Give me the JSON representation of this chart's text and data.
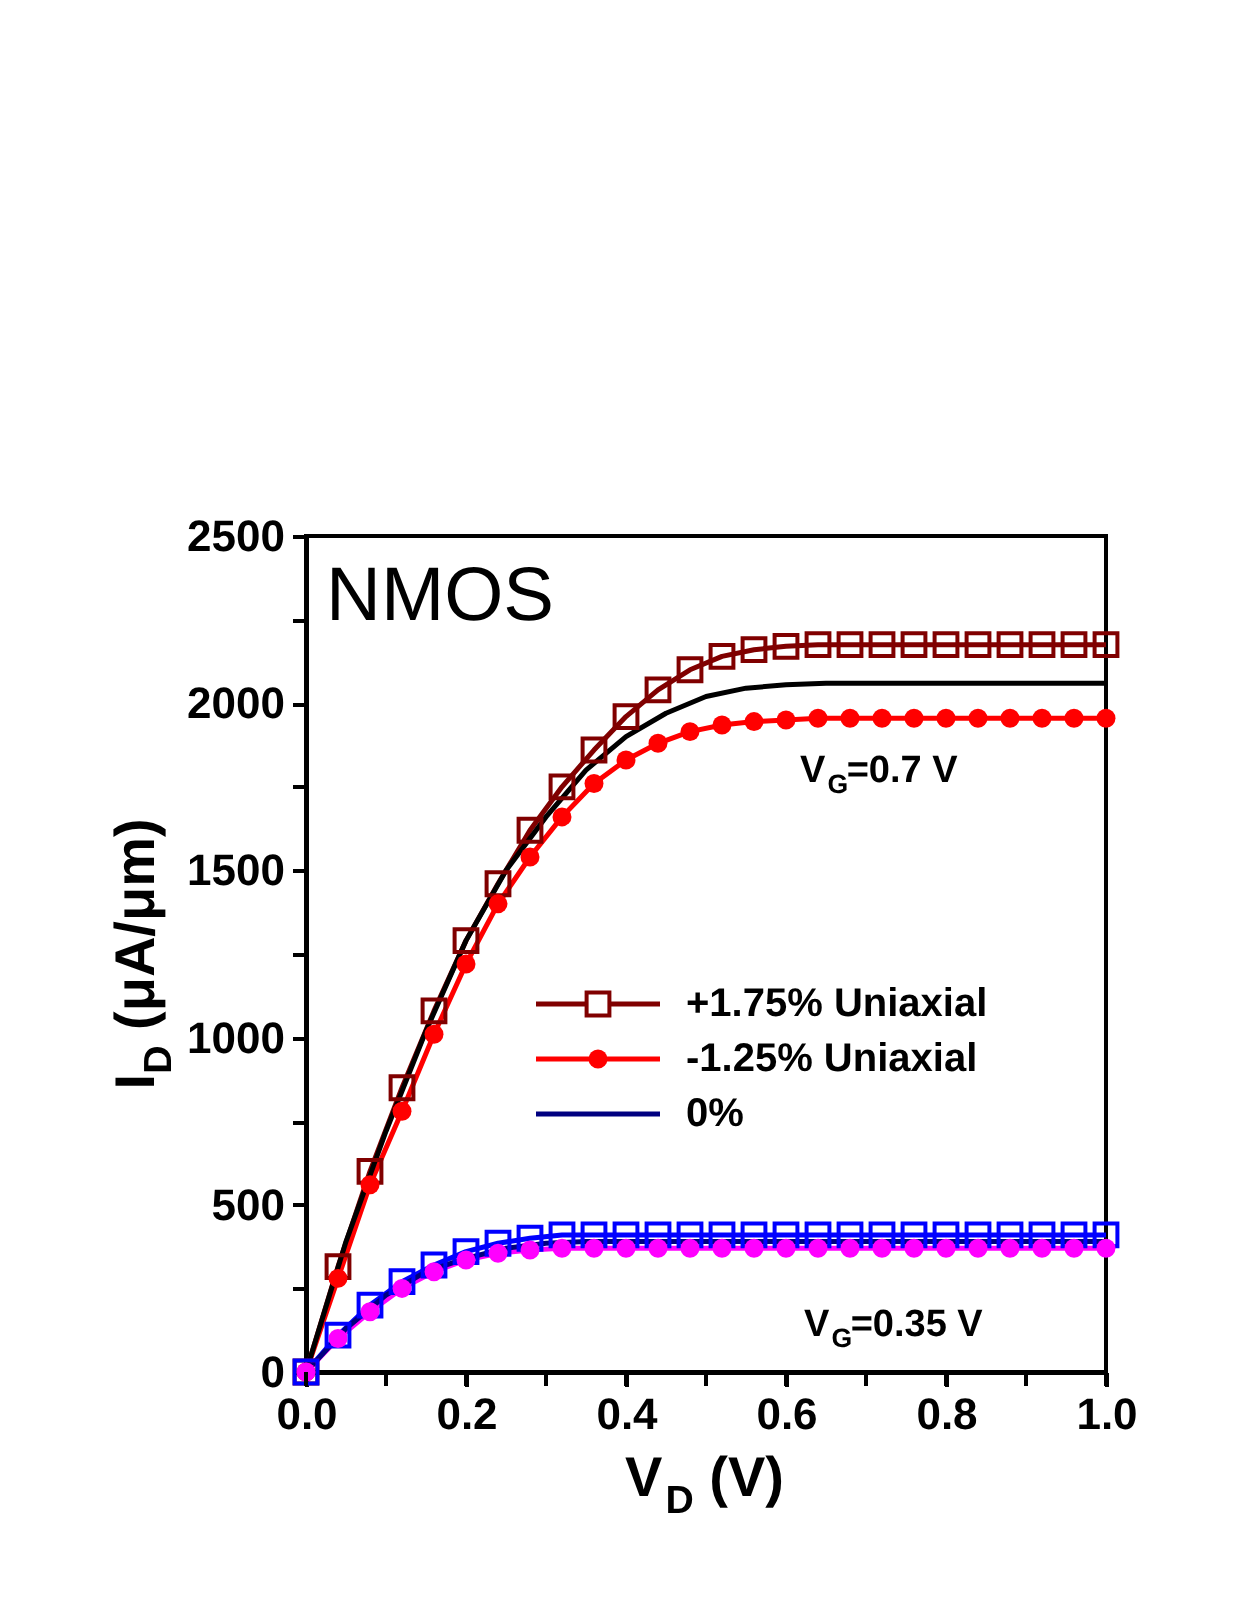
{
  "chart_data": {
    "type": "line",
    "xlabel": "V$_{D}$ (V)",
    "ylabel": "I$_{D}$ (μA/μm)",
    "xlim": [
      0,
      1.0
    ],
    "ylim": [
      0,
      2500
    ],
    "xticks": [
      {
        "value": 0,
        "label": "0.0"
      },
      {
        "value": 0.1,
        "label": null
      },
      {
        "value": 0.2,
        "label": "0.2"
      },
      {
        "value": 0.3,
        "label": null
      },
      {
        "value": 0.4,
        "label": "0.4"
      },
      {
        "value": 0.5,
        "label": null
      },
      {
        "value": 0.6,
        "label": "0.6"
      },
      {
        "value": 0.7,
        "label": null
      },
      {
        "value": 0.8,
        "label": "0.8"
      },
      {
        "value": 0.9,
        "label": null
      },
      {
        "value": 1.0,
        "label": "1.0"
      }
    ],
    "yticks": [
      0,
      {
        "value": 250,
        "label": null
      },
      500,
      {
        "value": 750,
        "label": null
      },
      1000,
      {
        "value": 1250,
        "label": null
      },
      1500,
      {
        "value": 1750,
        "label": null
      },
      2000,
      {
        "value": 2250,
        "label": null
      },
      2500
    ],
    "legend": "right",
    "line_style": "solid",
    "annotations": [
      "NMOS",
      "V$_{G}$=0.7 V",
      "V$_{G}$=0.35 V"
    ],
    "series": [
      {
        "name": "+1.75% Uniaxial",
        "color": "#800000",
        "marker": "square",
        "x": [
          0,
          0.04,
          0.08,
          0.12,
          0.16,
          0.2,
          0.24,
          0.28,
          0.32,
          0.36,
          0.4,
          0.44,
          0.48,
          0.52,
          0.56,
          0.6,
          0.64,
          0.68,
          0.72,
          0.76,
          0.8,
          0.84,
          0.88,
          0.92,
          0.96,
          1.0
        ],
        "values": [
          0,
          315,
          600,
          850,
          1080,
          1290,
          1460,
          1620,
          1750,
          1860,
          1960,
          2040,
          2100,
          2140,
          2160,
          2170,
          2175,
          2175,
          2175,
          2175,
          2175,
          2175,
          2175,
          2175,
          2175,
          2175
        ]
      },
      {
        "name": "-1.25% Uniaxial",
        "color": "#ff0000",
        "marker": "circle",
        "x": [
          0,
          0.04,
          0.08,
          0.12,
          0.16,
          0.2,
          0.24,
          0.28,
          0.32,
          0.36,
          0.4,
          0.44,
          0.48,
          0.52,
          0.56,
          0.6,
          0.64,
          0.68,
          0.72,
          0.76,
          0.8,
          0.84,
          0.88,
          0.92,
          0.96,
          1.0
        ],
        "values": [
          0,
          280,
          560,
          780,
          1010,
          1220,
          1400,
          1540,
          1660,
          1760,
          1830,
          1880,
          1915,
          1935,
          1945,
          1950,
          1955,
          1955,
          1955,
          1955,
          1955,
          1955,
          1955,
          1955,
          1955,
          1955
        ]
      },
      {
        "color": "#000000",
        "marker": "none",
        "x": [
          0,
          0.05,
          0.1,
          0.15,
          0.2,
          0.25,
          0.3,
          0.35,
          0.4,
          0.45,
          0.5,
          0.55,
          0.6,
          0.65,
          0.7,
          1.0
        ],
        "values": [
          0,
          390,
          720,
          1020,
          1290,
          1500,
          1660,
          1800,
          1900,
          1970,
          2020,
          2045,
          2055,
          2060,
          2060,
          2060
        ]
      },
      {
        "color": "#0000ff",
        "marker": "square",
        "x": [
          0,
          0.04,
          0.08,
          0.12,
          0.16,
          0.2,
          0.24,
          0.28,
          0.32,
          0.36,
          0.4,
          0.44,
          0.48,
          0.52,
          0.56,
          0.6,
          0.64,
          0.68,
          0.72,
          0.76,
          0.8,
          0.84,
          0.88,
          0.92,
          0.96,
          1.0
        ],
        "values": [
          0,
          110,
          200,
          270,
          320,
          360,
          385,
          400,
          410,
          410,
          410,
          410,
          410,
          410,
          410,
          410,
          410,
          410,
          410,
          410,
          410,
          410,
          410,
          410,
          410,
          410
        ]
      },
      {
        "color": "#ff00ff",
        "marker": "circle",
        "x": [
          0,
          0.04,
          0.08,
          0.12,
          0.16,
          0.2,
          0.24,
          0.28,
          0.32,
          0.36,
          0.4,
          0.44,
          0.48,
          0.52,
          0.56,
          0.6,
          0.64,
          0.68,
          0.72,
          0.76,
          0.8,
          0.84,
          0.88,
          0.92,
          0.96,
          1.0
        ],
        "values": [
          0,
          100,
          180,
          250,
          300,
          335,
          355,
          365,
          370,
          370,
          370,
          370,
          370,
          370,
          370,
          370,
          370,
          370,
          370,
          370,
          370,
          370,
          370,
          370,
          370,
          370
        ]
      },
      {
        "name": "0%",
        "color": "#000080",
        "marker": "none",
        "x": [
          0,
          0.05,
          0.1,
          0.15,
          0.2,
          0.25,
          0.3,
          0.35,
          0.4,
          1.0
        ],
        "values": [
          0,
          130,
          230,
          300,
          340,
          370,
          385,
          390,
          390,
          390
        ]
      }
    ]
  }
}
